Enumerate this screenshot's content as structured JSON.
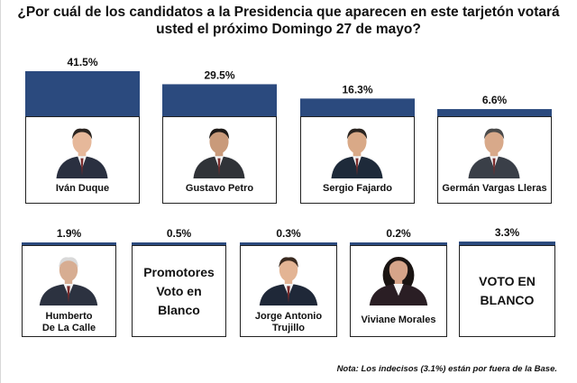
{
  "header": {
    "question": "¿Por cuál de los candidatos a la Presidencia  que aparecen en este tarjetón votará usted el próximo Domingo 27 de mayo?"
  },
  "colors": {
    "bar": "#2b4a7e",
    "card_border": "#222222"
  },
  "chart_data": {
    "type": "bar",
    "title": "¿Por cuál de los candidatos a la Presidencia  que aparecen en este tarjetón votará usted el próximo Domingo 27 de mayo?",
    "unit": "%",
    "categories": [
      "Iván Duque",
      "Gustavo Petro",
      "Sergio Fajardo",
      "Germán Vargas Lleras",
      "Humberto De La Calle",
      "Promotores Voto en Blanco",
      "Jorge Antonio Trujillo",
      "Viviane Morales",
      "VOTO EN BLANCO"
    ],
    "values": [
      41.5,
      29.5,
      16.3,
      6.6,
      1.9,
      0.5,
      0.3,
      0.2,
      3.3
    ],
    "labels": [
      "41.5%",
      "29.5%",
      "16.3%",
      "6.6%",
      "1.9%",
      "0.5%",
      "0.3%",
      "0.2%",
      "3.3%"
    ]
  },
  "cards": [
    {
      "name_lines": [
        "Iván Duque"
      ]
    },
    {
      "name_lines": [
        "Gustavo Petro"
      ]
    },
    {
      "name_lines": [
        "Sergio Fajardo"
      ]
    },
    {
      "name_lines": [
        "Germán Vargas Lleras"
      ]
    },
    {
      "name_lines": [
        "Humberto",
        "De La Calle"
      ]
    },
    {
      "name_lines": [
        "Promotores",
        "Voto en",
        "Blanco"
      ]
    },
    {
      "name_lines": [
        "Jorge Antonio",
        "Trujillo"
      ]
    },
    {
      "name_lines": [
        "Viviane Morales"
      ]
    },
    {
      "name_lines": [
        "VOTO EN",
        "BLANCO"
      ]
    }
  ],
  "footer": {
    "note": "Nota: Los indecisos (3.1%) están por fuera de la Base."
  }
}
